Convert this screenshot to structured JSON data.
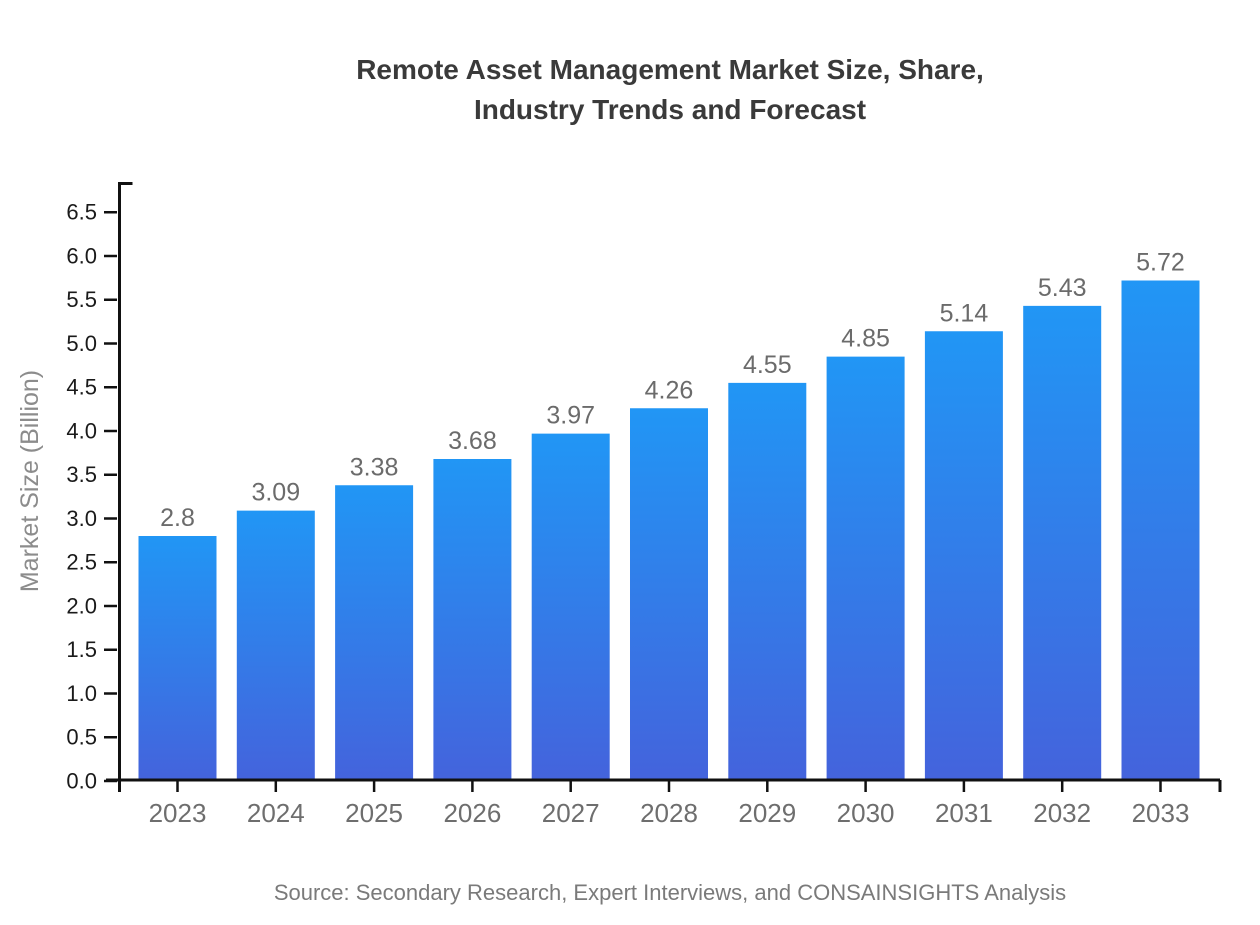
{
  "chart_data": {
    "type": "bar",
    "title_lines": [
      "Remote Asset Management Market Size, Share,",
      "Industry Trends and Forecast"
    ],
    "title": "Remote Asset Management Market Size, Share, Industry Trends and Forecast",
    "xlabel": "",
    "ylabel": "Market Size (Billion)",
    "source": "Source: Secondary Research, Expert Interviews, and CONSAINSIGHTS Analysis",
    "categories": [
      "2023",
      "2024",
      "2025",
      "2026",
      "2027",
      "2028",
      "2029",
      "2030",
      "2031",
      "2032",
      "2033"
    ],
    "values": [
      2.8,
      3.09,
      3.38,
      3.68,
      3.97,
      4.26,
      4.55,
      4.85,
      5.14,
      5.43,
      5.72
    ],
    "value_labels": [
      "2.8",
      "3.09",
      "3.38",
      "3.68",
      "3.97",
      "4.26",
      "4.55",
      "4.85",
      "5.14",
      "5.43",
      "5.72"
    ],
    "ylim": [
      0.0,
      6.5
    ],
    "ytick_step": 0.5,
    "grid": false,
    "legend": "none",
    "bar_color_top": "#2196f5",
    "bar_color_bottom": "#4463dc",
    "axis_color": "#111111"
  }
}
